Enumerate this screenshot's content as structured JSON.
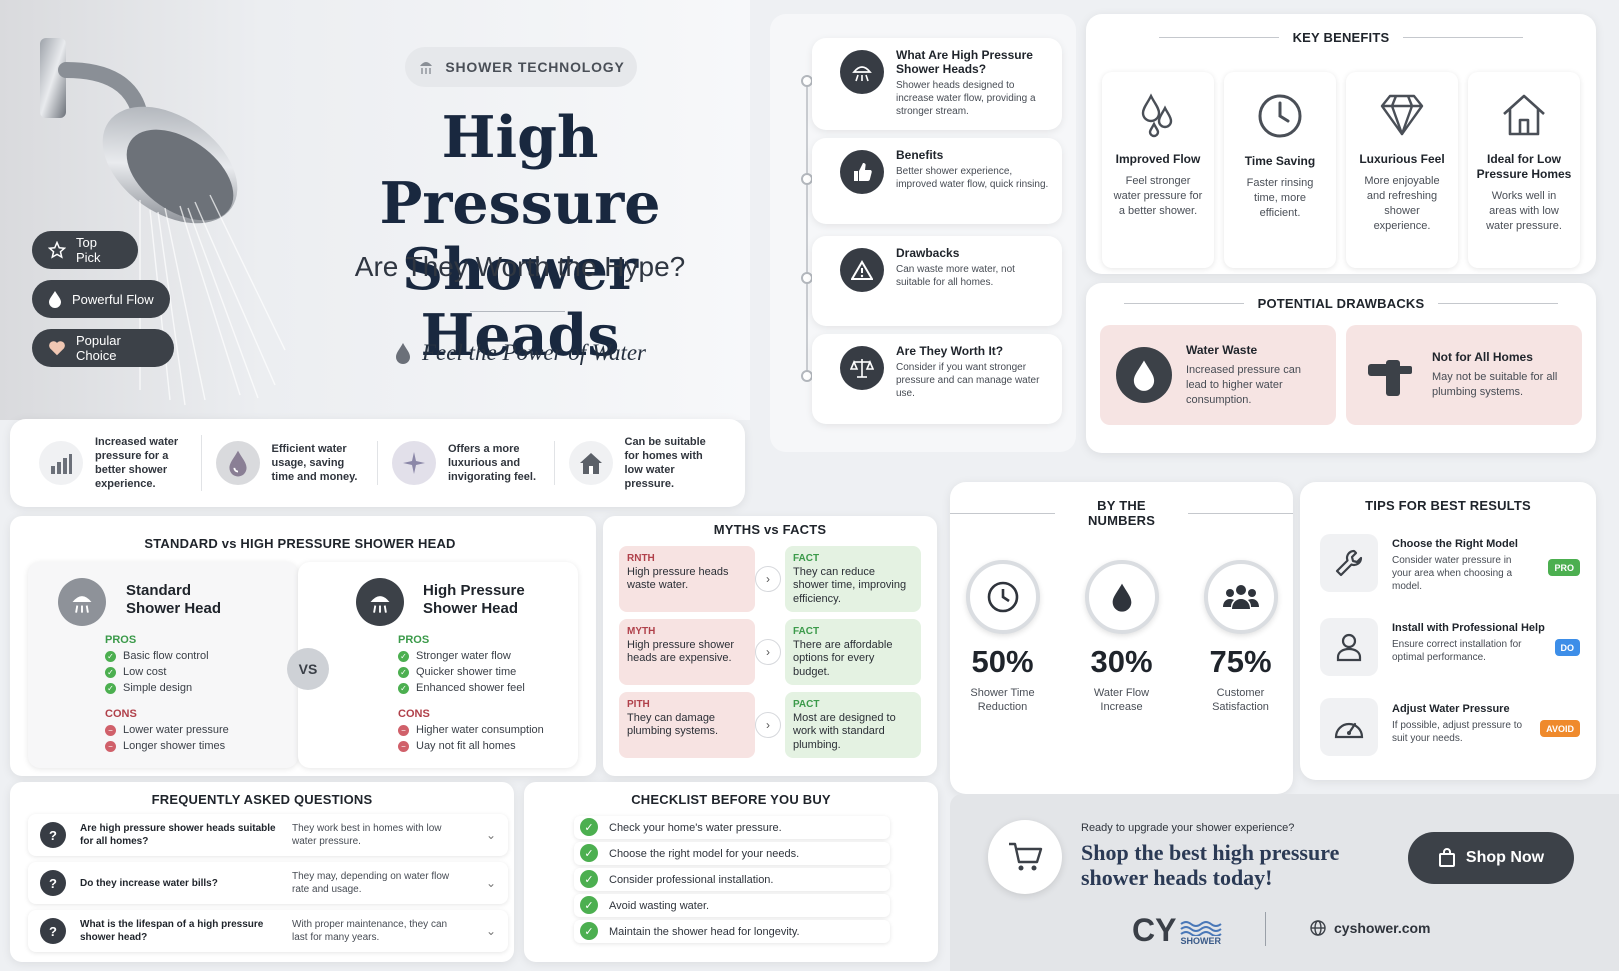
{
  "hero": {
    "badge": "SHOWER TECHNOLOGY",
    "title_line1": "High Pressure",
    "title_line2": "Shower Heads",
    "subtitle": "Are They Worth the Hype?",
    "tagline": "Feel the Power of Water",
    "pills": [
      {
        "label": "Top Pick",
        "icon": "star-icon"
      },
      {
        "label": "Powerful Flow",
        "icon": "drop-icon"
      },
      {
        "label": "Popular Choice",
        "icon": "heart-icon"
      }
    ]
  },
  "features": [
    {
      "text": "Increased water pressure for a better shower experience.",
      "icon": "bar-chart-icon"
    },
    {
      "text": "Efficient water usage, saving time and money.",
      "icon": "drop-icon"
    },
    {
      "text": "Offers a more luxurious and invigorating feel.",
      "icon": "sparkle-icon"
    },
    {
      "text": "Can be suitable for homes with low water pressure.",
      "icon": "house-icon"
    }
  ],
  "timeline": [
    {
      "title": "What Are High Pressure Shower Heads?",
      "text": "Shower heads designed to increase water flow, providing a stronger stream.",
      "icon": "shower-icon"
    },
    {
      "title": "Benefits",
      "text": "Better shower experience, improved water flow, quick rinsing.",
      "icon": "thumbs-up-icon"
    },
    {
      "title": "Drawbacks",
      "text": "Can waste more water, not suitable for all homes.",
      "icon": "warning-icon"
    },
    {
      "title": "Are They Worth It?",
      "text": "Consider if you want stronger pressure and can manage water use.",
      "icon": "scale-icon"
    }
  ],
  "key_benefits": {
    "title": "KEY BENEFITS",
    "items": [
      {
        "title": "Improved Flow",
        "text": "Feel stronger water pressure for a better shower.",
        "icon": "drops-icon"
      },
      {
        "title": "Time Saving",
        "text": "Faster rinsing time, more efficient.",
        "icon": "clock-icon"
      },
      {
        "title": "Luxurious Feel",
        "text": "More enjoyable and refreshing shower experience.",
        "icon": "diamond-icon"
      },
      {
        "title": "Ideal for Low Pressure Homes",
        "text": "Works well in areas with low water pressure.",
        "icon": "house-icon"
      }
    ]
  },
  "drawbacks": {
    "title": "POTENTIAL DRAWBACKS",
    "items": [
      {
        "title": "Water Waste",
        "text": "Increased pressure can lead to higher water consumption.",
        "icon": "drop-icon"
      },
      {
        "title": "Not for All Homes",
        "text": "May not be suitable for all plumbing systems.",
        "icon": "pipe-icon"
      }
    ]
  },
  "compare": {
    "title": "STANDARD vs HIGH PRESSURE SHOWER HEAD",
    "vs": "VS",
    "pros_label": "PROS",
    "cons_label": "CONS",
    "standard": {
      "title_line1": "Standard",
      "title_line2": "Shower Head",
      "pros": [
        "Basic flow control",
        "Low cost",
        "Simple design"
      ],
      "cons": [
        "Lower water pressure",
        "Longer shower times"
      ]
    },
    "high": {
      "title_line1": "High Pressure",
      "title_line2": "Shower Head",
      "pros": [
        "Stronger water flow",
        "Quicker shower time",
        "Enhanced shower feel"
      ],
      "cons": [
        "Higher water consumption",
        "Uay not fit all homes"
      ]
    }
  },
  "myths": {
    "title": "MYTHS vs FACTS",
    "rows": [
      {
        "myth_tag": "RNTH",
        "myth": "High pressure heads waste water.",
        "fact_tag": "FACT",
        "fact": "They can reduce shower time, improving efficiency."
      },
      {
        "myth_tag": "MYTH",
        "myth": "High pressure shower heads are expensive.",
        "fact_tag": "FACT",
        "fact": "There are affordable options for every budget."
      },
      {
        "myth_tag": "PITH",
        "myth": "They can damage plumbing systems.",
        "fact_tag": "PACT",
        "fact": "Most are designed to work with standard plumbing."
      }
    ]
  },
  "numbers": {
    "title": "BY THE NUMBERS",
    "items": [
      {
        "value": "50%",
        "label_line1": "Shower Time",
        "label_line2": "Reduction",
        "icon": "clock-icon"
      },
      {
        "value": "30%",
        "label_line1": "Water Flow",
        "label_line2": "Increase",
        "icon": "drop-icon"
      },
      {
        "value": "75%",
        "label_line1": "Customer",
        "label_line2": "Satisfaction",
        "icon": "people-icon"
      }
    ]
  },
  "tips": {
    "title": "TIPS FOR BEST RESULTS",
    "items": [
      {
        "title": "Choose the Right Model",
        "text": "Consider water pressure in your area when choosing a model.",
        "badge": "PRO",
        "badge_color": "#4caf50",
        "icon": "wrench-icon"
      },
      {
        "title": "Install with Professional Help",
        "text": "Ensure correct installation for optimal performance.",
        "badge": "DO",
        "badge_color": "#3d8ee8",
        "icon": "person-icon"
      },
      {
        "title": "Adjust Water Pressure",
        "text": "If possible, adjust pressure to suit your needs.",
        "badge": "AVOID",
        "badge_color": "#ef8a2c",
        "icon": "gauge-icon"
      }
    ]
  },
  "faq": {
    "title": "FREQUENTLY ASKED QUESTIONS",
    "items": [
      {
        "q": "Are high pressure shower heads suitable for all homes?",
        "a": "They work best in homes with low water pressure."
      },
      {
        "q": "Do they increase water bills?",
        "a": "They may, depending on water flow rate and usage."
      },
      {
        "q": "What is the lifespan of a high pressure shower head?",
        "a": "With proper maintenance, they can last for many years."
      }
    ]
  },
  "checklist": {
    "title": "CHECKLIST BEFORE YOU BUY",
    "items": [
      "Check your home's water pressure.",
      "Choose the right model for your needs.",
      "Consider professional installation.",
      "Avoid wasting water.",
      "Maintain the shower head for longevity."
    ]
  },
  "shop": {
    "small": "Ready to upgrade your shower experience?",
    "big": "Shop the best high pressure shower heads today!",
    "button": "Shop Now",
    "logo": "CY",
    "logo_sub": "SHOWER",
    "site": "cyshower.com"
  },
  "colors": {
    "dark": "#3c4148",
    "navy": "#19283f",
    "green": "#4caf50",
    "red": "#d0606a"
  }
}
